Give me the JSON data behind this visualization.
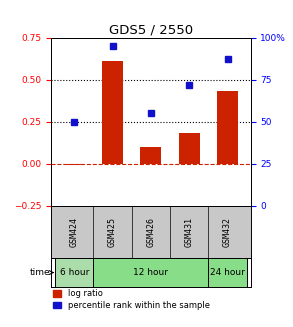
{
  "title": "GDS5 / 2550",
  "samples": [
    "GSM424",
    "GSM425",
    "GSM426",
    "GSM431",
    "GSM432"
  ],
  "log_ratio": [
    -0.01,
    0.61,
    0.1,
    0.18,
    0.43
  ],
  "percentile_rank": [
    50,
    95,
    55,
    72,
    87
  ],
  "bar_color": "#cc2200",
  "dot_color": "#1111cc",
  "hline_zero_color": "#cc2200",
  "hline_dot_color": "black",
  "left_ylim": [
    -0.25,
    0.75
  ],
  "right_ylim": [
    0,
    100
  ],
  "left_yticks": [
    -0.25,
    0.0,
    0.25,
    0.5,
    0.75
  ],
  "right_yticks": [
    0,
    25,
    50,
    75,
    100
  ],
  "right_yticklabels": [
    "0",
    "25",
    "50",
    "75",
    "100%"
  ],
  "background_color": "#ffffff",
  "sample_bg_color": "#c8c8c8",
  "time_def": [
    {
      "label": "6 hour",
      "indices": [
        0
      ],
      "color": "#aaddaa"
    },
    {
      "label": "12 hour",
      "indices": [
        1,
        2,
        3
      ],
      "color": "#88dd88"
    },
    {
      "label": "24 hour",
      "indices": [
        4
      ],
      "color": "#88dd88"
    }
  ],
  "legend": [
    "log ratio",
    "percentile rank within the sample"
  ]
}
